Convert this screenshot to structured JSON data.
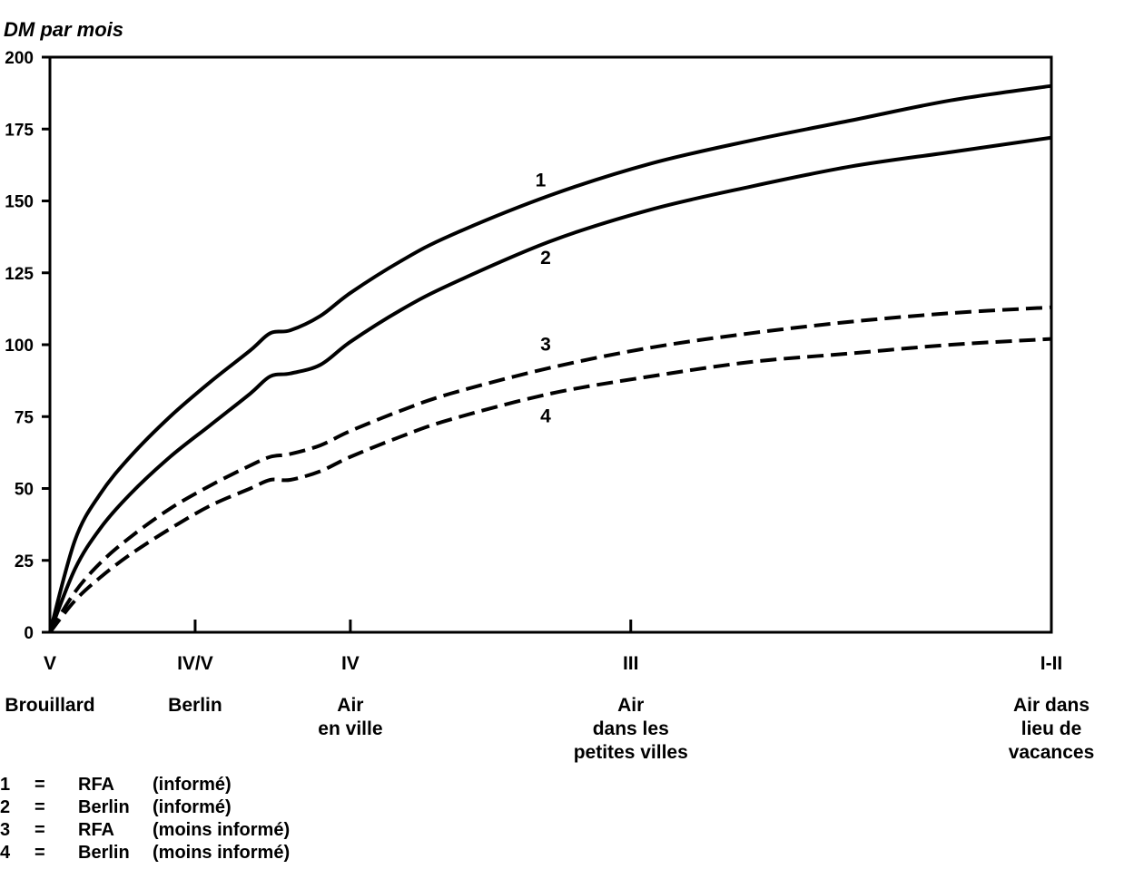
{
  "chart_data": {
    "type": "line",
    "ylabel": "DM par mois",
    "ylim": [
      0,
      200
    ],
    "yticks": [
      0,
      25,
      50,
      75,
      100,
      125,
      150,
      175,
      200
    ],
    "categories": [
      {
        "roman": "V",
        "name": "Brouillard",
        "x": 0
      },
      {
        "roman": "IV/V",
        "name": "Berlin",
        "x": 1.45
      },
      {
        "roman": "IV",
        "name": "Air\nen ville",
        "x": 3.0
      },
      {
        "roman": "III",
        "name": "Air\ndans les\npetites villes",
        "x": 5.8
      },
      {
        "roman": "I-II",
        "name": "Air dans\nlieu de\nvacances",
        "x": 10.0
      }
    ],
    "xlim": [
      0,
      10
    ],
    "grid": false,
    "series": [
      {
        "name": "1",
        "style": "solid",
        "x": [
          0,
          0.25,
          0.5,
          0.8,
          1.2,
          1.6,
          2.0,
          2.2,
          2.4,
          2.7,
          3.0,
          3.5,
          4.0,
          5.0,
          6.0,
          7.0,
          8.0,
          9.0,
          10.0
        ],
        "y": [
          0,
          32,
          48,
          61,
          75,
          87,
          98,
          104,
          105,
          110,
          118,
          129,
          138,
          152,
          163,
          171,
          178,
          185,
          190
        ]
      },
      {
        "name": "2",
        "style": "solid",
        "x": [
          0,
          0.25,
          0.5,
          0.8,
          1.2,
          1.6,
          2.0,
          2.2,
          2.4,
          2.7,
          3.0,
          3.5,
          4.0,
          5.0,
          6.0,
          7.0,
          8.0,
          9.0,
          10.0
        ],
        "y": [
          0,
          22,
          36,
          48,
          61,
          72,
          83,
          89,
          90,
          93,
          101,
          112,
          121,
          136,
          147,
          155,
          162,
          167,
          172
        ]
      },
      {
        "name": "3",
        "style": "dashed",
        "x": [
          0,
          0.25,
          0.5,
          0.8,
          1.2,
          1.6,
          2.0,
          2.2,
          2.4,
          2.7,
          3.0,
          3.5,
          4.0,
          5.0,
          6.0,
          7.0,
          8.0,
          9.0,
          10.0
        ],
        "y": [
          0,
          14,
          24,
          33,
          43,
          51,
          58,
          61,
          62,
          65,
          70,
          77,
          83,
          92,
          99,
          104,
          108,
          111,
          113
        ]
      },
      {
        "name": "4",
        "style": "dashed",
        "x": [
          0,
          0.25,
          0.5,
          0.8,
          1.2,
          1.6,
          2.0,
          2.2,
          2.4,
          2.7,
          3.0,
          3.5,
          4.0,
          5.0,
          6.0,
          7.0,
          8.0,
          9.0,
          10.0
        ],
        "y": [
          0,
          11,
          19,
          27,
          36,
          44,
          50,
          53,
          53,
          56,
          61,
          68,
          74,
          83,
          89,
          94,
          97,
          100,
          102
        ]
      }
    ],
    "series_labels": [
      {
        "text": "1",
        "x": 4.9,
        "y": 155
      },
      {
        "text": "2",
        "x": 4.95,
        "y": 128
      },
      {
        "text": "3",
        "x": 4.95,
        "y": 98
      },
      {
        "text": "4",
        "x": 4.95,
        "y": 73
      }
    ],
    "legend": [
      {
        "num": "1",
        "eq": "=",
        "region": "RFA",
        "desc": "(informé)"
      },
      {
        "num": "2",
        "eq": "=",
        "region": "Berlin",
        "desc": "(informé)"
      },
      {
        "num": "3",
        "eq": "=",
        "region": "RFA",
        "desc": "(moins informé)"
      },
      {
        "num": "4",
        "eq": "=",
        "region": "Berlin",
        "desc": "(moins informé)"
      }
    ],
    "legend_position": "bottom-left"
  }
}
